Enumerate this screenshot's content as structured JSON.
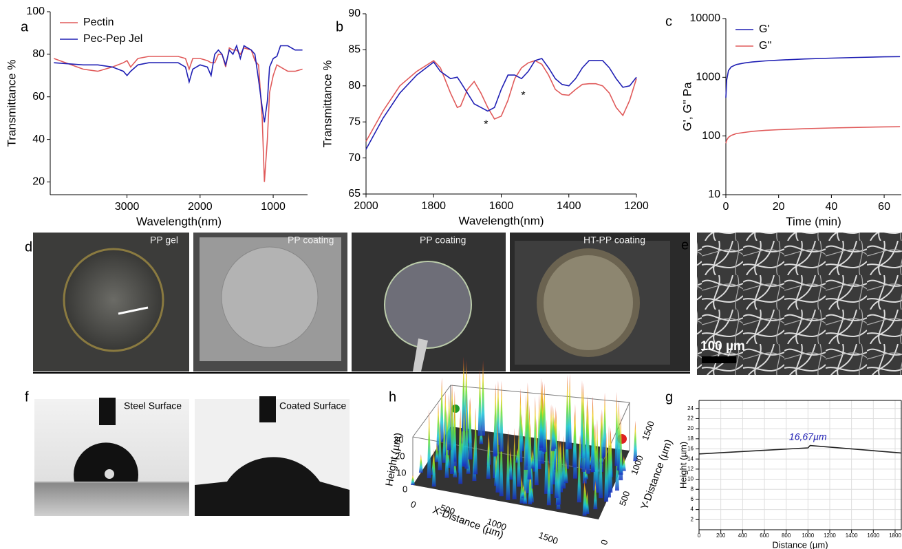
{
  "chart_data": [
    {
      "type": "line",
      "panel_label": "a",
      "x_label": "Wavelength(nm)",
      "y_label": "Transmittance %",
      "x": [
        4000,
        3600,
        3400,
        3200,
        3050,
        3000,
        2950,
        2850,
        2700,
        2500,
        2300,
        2200,
        2150,
        2100,
        2000,
        1900,
        1850,
        1800,
        1750,
        1700,
        1650,
        1600,
        1550,
        1500,
        1450,
        1400,
        1300,
        1250,
        1200,
        1150,
        1120,
        1080,
        1050,
        1000,
        950,
        900,
        800,
        700,
        600
      ],
      "series": [
        {
          "name": "Pectin",
          "color": "#e05a5a",
          "values": [
            78,
            73,
            72,
            74,
            76,
            77,
            74,
            78,
            79,
            79,
            79,
            78,
            73,
            78,
            78,
            77,
            76,
            76,
            80,
            80,
            74,
            83,
            82,
            82,
            80,
            83,
            82,
            77,
            75,
            50,
            20,
            40,
            62,
            70,
            75,
            74,
            72,
            72,
            73
          ]
        },
        {
          "name": "Pec-Pep Jel",
          "color": "#1f1fb4",
          "values": [
            76,
            75,
            75,
            74,
            72,
            70,
            72,
            75,
            76,
            76,
            76,
            74,
            67,
            73,
            75,
            74,
            70,
            80,
            82,
            80,
            75,
            82,
            80,
            84,
            78,
            84,
            82,
            80,
            68,
            55,
            48,
            58,
            74,
            78,
            79,
            84,
            84,
            82,
            82
          ]
        }
      ],
      "xlim": [
        4050,
        530
      ],
      "xticks": [
        3000,
        2000,
        1000
      ],
      "ylim": [
        14,
        100
      ],
      "yticks": [
        20,
        40,
        60,
        80,
        100
      ],
      "legend": "upper left",
      "grid": false
    },
    {
      "type": "line",
      "panel_label": "b",
      "x_label": "Wavelength(nm)",
      "y_label": "Transmittance %",
      "x": [
        2000,
        1950,
        1900,
        1850,
        1800,
        1780,
        1750,
        1730,
        1720,
        1700,
        1680,
        1660,
        1640,
        1620,
        1600,
        1580,
        1560,
        1540,
        1520,
        1500,
        1480,
        1460,
        1440,
        1420,
        1400,
        1380,
        1360,
        1340,
        1320,
        1300,
        1280,
        1260,
        1240,
        1220,
        1200
      ],
      "series": [
        {
          "color": "#e05a5a",
          "values": [
            72.3,
            76.5,
            80,
            82,
            83.5,
            82.5,
            79,
            77,
            77.2,
            79.5,
            80.6,
            79,
            77,
            75.4,
            75.8,
            78,
            81,
            82.5,
            83.2,
            83.5,
            83,
            81.5,
            79.5,
            78.8,
            78.7,
            79.5,
            80.2,
            80.3,
            80.3,
            80,
            79,
            77,
            75.9,
            78,
            81
          ]
        },
        {
          "color": "#1f1fb4",
          "values": [
            71.2,
            75.5,
            79,
            81.5,
            83.3,
            82,
            81,
            81.2,
            80.5,
            79,
            77.5,
            77,
            76.5,
            77,
            79.5,
            81.5,
            81.5,
            81,
            82,
            83.5,
            83.8,
            82.5,
            81,
            80.2,
            80,
            81,
            82.5,
            83.5,
            83.5,
            83.5,
            82.5,
            81,
            79.8,
            80,
            81.2
          ]
        }
      ],
      "annotations": [
        {
          "text": "*",
          "x": 1645,
          "y": 74.6
        },
        {
          "text": "*",
          "x": 1535,
          "y": 78.6
        }
      ],
      "xlim": [
        2000,
        1200
      ],
      "xticks": [
        2000,
        1800,
        1600,
        1400,
        1200
      ],
      "ylim": [
        65,
        90
      ],
      "yticks": [
        65,
        70,
        75,
        80,
        85,
        90
      ],
      "grid": false
    },
    {
      "type": "line",
      "panel_label": "c",
      "x_label": "Time (min)",
      "y_label": "G', G'' Pa",
      "y_scale": "log",
      "x": [
        0,
        0.3,
        1,
        2,
        4,
        7,
        10,
        15,
        20,
        30,
        40,
        50,
        60,
        66
      ],
      "series": [
        {
          "name": "G'",
          "color": "#1f1fb4",
          "values": [
            450,
            900,
            1300,
            1500,
            1650,
            1750,
            1820,
            1900,
            1960,
            2050,
            2120,
            2180,
            2230,
            2250
          ]
        },
        {
          "name": "G''",
          "color": "#e05a5a",
          "values": [
            75,
            85,
            95,
            102,
            110,
            115,
            120,
            125,
            128,
            133,
            137,
            140,
            143,
            144
          ]
        }
      ],
      "xlim": [
        0,
        66.5
      ],
      "xticks": [
        0,
        20,
        40,
        60
      ],
      "ylim": [
        10,
        10000
      ],
      "yticks": [
        10,
        100,
        1000,
        10000
      ],
      "legend": "upper left",
      "grid": false
    },
    {
      "type": "line",
      "panel_label": "g",
      "x_label": "Distance (µm)",
      "y_label": "Height (µm)",
      "x": [
        0,
        1000,
        1020,
        1857
      ],
      "series": [
        {
          "color": "#222222",
          "values": [
            15,
            16.2,
            16.67,
            15.2
          ]
        }
      ],
      "annotations": [
        {
          "text": "16,67µm",
          "x": 1000,
          "y": 18.3,
          "color": "#1f1fb4"
        }
      ],
      "xlim": [
        0,
        1857
      ],
      "xticks": [
        0,
        200,
        400,
        600,
        800,
        1000,
        1200,
        1400,
        1600,
        1800
      ],
      "ylim": [
        0,
        25.6
      ],
      "yticks": [
        2,
        4,
        6,
        8,
        10,
        12,
        14,
        16,
        18,
        20,
        22,
        24
      ],
      "grid": true
    }
  ],
  "photos_d": {
    "panel_label": "d",
    "captions": [
      "PP  gel",
      "PP coating",
      "PP coating",
      "HT-PP coating"
    ]
  },
  "sem_e": {
    "panel_label": "e",
    "scale_bar": "100 µm"
  },
  "photos_f": {
    "panel_label": "f",
    "captions": [
      "Steel Surface",
      "Coated Surface"
    ]
  },
  "surface_h": {
    "panel_label": "h",
    "z_label": "Height (µm)",
    "x_label": "X-Distance (µm)",
    "y_label": "Y-Distance (µm)",
    "z_ticks": [
      "0",
      "10",
      "20",
      "30"
    ],
    "x_ticks": [
      "0",
      "500",
      "1000",
      "1500"
    ],
    "y_ticks": [
      "0",
      "500",
      "1000",
      "1500"
    ]
  }
}
